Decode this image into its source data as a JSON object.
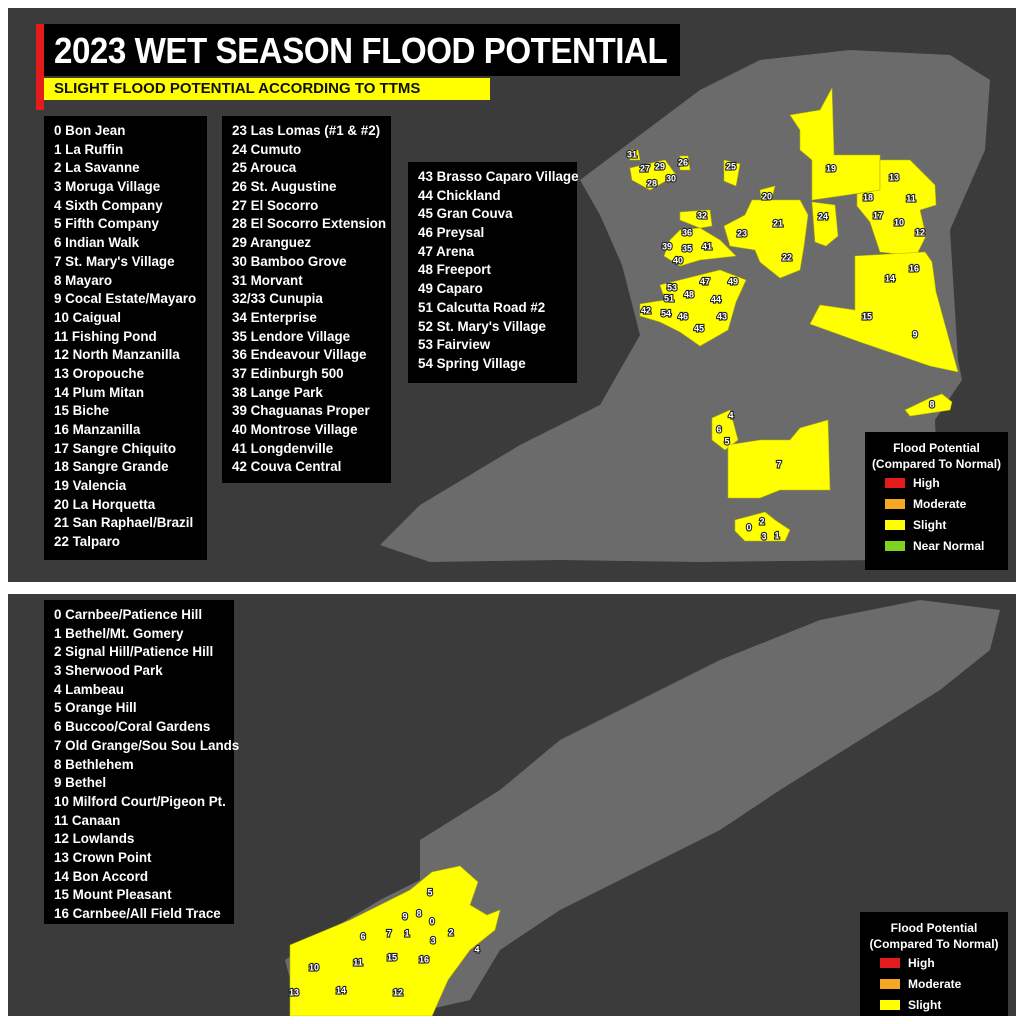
{
  "title": "2023 WET SEASON FLOOD POTENTIAL",
  "subtitle": "SLIGHT FLOOD POTENTIAL ACCORDING TO TTMS",
  "colors": {
    "background": "#3b3b3b",
    "land": "#6b6b6b",
    "slight": "#ffff00",
    "high": "#e41b1b",
    "moderate": "#f5a623",
    "near_normal": "#7ed321",
    "title_accent": "#e41b1b"
  },
  "trinidad": {
    "areas_col1": [
      "0 Bon Jean",
      "1 La Ruffin",
      "2 La Savanne",
      "3 Moruga Village",
      "4 Sixth Company",
      "5 Fifth Company",
      "6 Indian Walk",
      "7 St. Mary's Village",
      "8 Mayaro",
      "9 Cocal Estate/Mayaro",
      "10 Caigual",
      "11 Fishing Pond",
      "12 North Manzanilla",
      "13 Oropouche",
      "14 Plum Mitan",
      "15 Biche",
      "16 Manzanilla",
      "17 Sangre Chiquito",
      "18 Sangre Grande",
      "19 Valencia",
      "20 La Horquetta",
      "21 San Raphael/Brazil",
      "22 Talparo"
    ],
    "areas_col2": [
      "23 Las Lomas (#1 & #2)",
      "24 Cumuto",
      "25 Arouca",
      "26 St. Augustine",
      "27 El Socorro",
      "28 El Socorro Extension",
      "29 Aranguez",
      "30 Bamboo Grove",
      "31 Morvant",
      "32/33 Cunupia",
      "34 Enterprise",
      "35 Lendore Village",
      "36 Endeavour Village",
      "37 Edinburgh 500",
      "38 Lange Park",
      "39 Chaguanas Proper",
      "40 Montrose Village",
      "41 Longdenville",
      "42 Couva Central"
    ],
    "areas_col3": [
      "43 Brasso Caparo Village",
      "44 Chickland",
      "45 Gran Couva",
      "46 Preysal",
      "47 Arena",
      "48 Freeport",
      "49 Caparo",
      "51 Calcutta Road #2",
      "52 St. Mary's Village",
      "53 Fairview",
      "54 Spring Village"
    ],
    "map_labels": [
      "31",
      "27",
      "29",
      "26",
      "25",
      "28",
      "30",
      "20",
      "19",
      "13",
      "18",
      "11",
      "32",
      "21",
      "24",
      "17",
      "10",
      "12",
      "23",
      "36",
      "39",
      "35",
      "41",
      "40",
      "22",
      "16",
      "14",
      "47",
      "49",
      "53",
      "48",
      "51",
      "44",
      "42",
      "54",
      "46",
      "43",
      "45",
      "15",
      "9",
      "8",
      "4",
      "6",
      "5",
      "7",
      "2",
      "0",
      "3",
      "1"
    ]
  },
  "tobago": {
    "areas": [
      "0 Carnbee/Patience Hill",
      "1 Bethel/Mt. Gomery",
      "2 Signal Hill/Patience Hill",
      "3 Sherwood Park",
      "4 Lambeau",
      "5 Orange Hill",
      "6 Buccoo/Coral Gardens",
      "7 Old Grange/Sou Sou Lands",
      "8 Bethlehem",
      "9 Bethel",
      "10 Milford Court/Pigeon Pt.",
      "11 Canaan",
      "12 Lowlands",
      "13 Crown Point",
      "14 Bon Accord",
      "15 Mount Pleasant",
      "16 Carnbee/All Field Trace"
    ],
    "map_labels": [
      "5",
      "9",
      "8",
      "0",
      "6",
      "7",
      "1",
      "3",
      "2",
      "4",
      "15",
      "16",
      "10",
      "11",
      "13",
      "14",
      "12"
    ]
  },
  "legend": {
    "title_line1": "Flood Potential",
    "title_line2": "(Compared To Normal)",
    "items": [
      "High",
      "Moderate",
      "Slight",
      "Near Normal"
    ]
  }
}
